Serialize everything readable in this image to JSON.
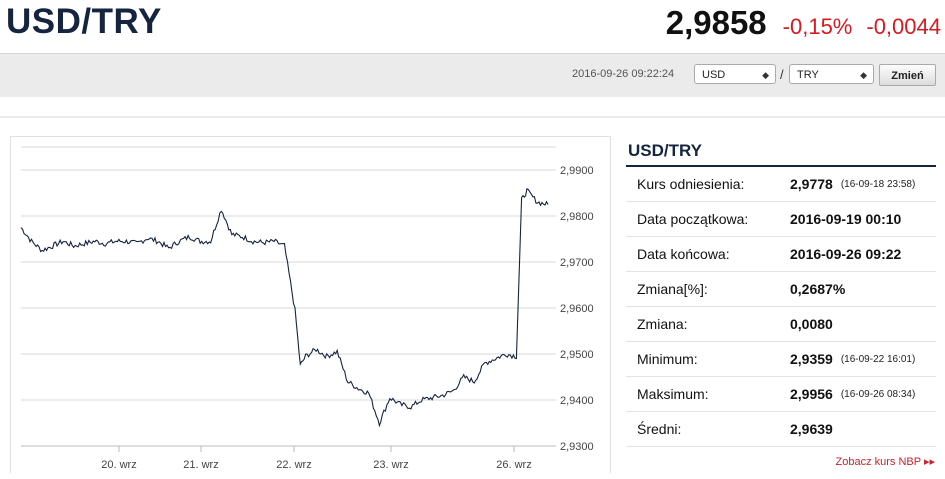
{
  "header": {
    "pair": "USD/TRY",
    "price": "2,9858",
    "change_pct": "-0,15%",
    "change_abs": "-0,0044"
  },
  "toolbar": {
    "timestamp": "2016-09-26 09:22:24",
    "from_currency": "USD",
    "separator": "/",
    "to_currency": "TRY",
    "change_button": "Zmień"
  },
  "colors": {
    "negative": "#d71920",
    "brand": "#15243f",
    "line": "#15243f"
  },
  "chart_data": {
    "type": "line",
    "x_tick_labels": [
      "20. wrz",
      "21. wrz",
      "22. wrz",
      "23. wrz",
      "26. wrz"
    ],
    "y_tick_labels": [
      "2,9900",
      "2,9800",
      "2,9700",
      "2,9600",
      "2,9500",
      "2,9400",
      "2,9300"
    ],
    "ylim": [
      2.93,
      2.995
    ],
    "grid": true,
    "series": [
      {
        "x": [
          0,
          0.02,
          0.04,
          0.06,
          0.08,
          0.1,
          0.12,
          0.14,
          0.16,
          0.18,
          0.2,
          0.22,
          0.24,
          0.26,
          0.28,
          0.3,
          0.32,
          0.34,
          0.36,
          0.38,
          0.4,
          0.42,
          0.44,
          0.46,
          0.48,
          0.5,
          0.52,
          0.53,
          0.54,
          0.56,
          0.58,
          0.6,
          0.62,
          0.64,
          0.66,
          0.68,
          0.7,
          0.72,
          0.74,
          0.76,
          0.78,
          0.8,
          0.82,
          0.84,
          0.86,
          0.88,
          0.9,
          0.92,
          0.94,
          0.95,
          0.96,
          0.98,
          1.0
        ],
        "values": [
          2.9775,
          2.9745,
          2.9725,
          2.9735,
          2.9745,
          2.9735,
          2.974,
          2.9745,
          2.974,
          2.9745,
          2.9745,
          2.974,
          2.9752,
          2.9745,
          2.973,
          2.9745,
          2.9755,
          2.9745,
          2.9745,
          2.9815,
          2.976,
          2.9755,
          2.9745,
          2.9742,
          2.9745,
          2.9735,
          2.9595,
          2.9475,
          2.9495,
          2.951,
          2.9495,
          2.9505,
          2.944,
          2.9425,
          2.9415,
          2.935,
          2.9405,
          2.939,
          2.9385,
          2.94,
          2.9405,
          2.941,
          2.942,
          2.945,
          2.944,
          2.948,
          2.949,
          2.95,
          2.9495,
          2.9835,
          2.9855,
          2.983,
          2.9825
        ]
      }
    ]
  },
  "info": {
    "title": "USD/TRY",
    "rows": [
      {
        "label": "Kurs odniesienia:",
        "value": "2,9778",
        "note": "(16-09-18 23:58)"
      },
      {
        "label": "Data początkowa:",
        "value": "2016-09-19 00:10"
      },
      {
        "label": "Data końcowa:",
        "value": "2016-09-26 09:22"
      },
      {
        "label": "Zmiana[%]:",
        "value": "0,2687%"
      },
      {
        "label": "Zmiana:",
        "value": "0,0080"
      },
      {
        "label": "Minimum:",
        "value": "2,9359",
        "note": "(16-09-22 16:01)"
      },
      {
        "label": "Maksimum:",
        "value": "2,9956",
        "note": "(16-09-26 08:34)"
      },
      {
        "label": "Średni:",
        "value": "2,9639"
      }
    ],
    "link": "Zobacz kurs NBP ▸▸"
  }
}
